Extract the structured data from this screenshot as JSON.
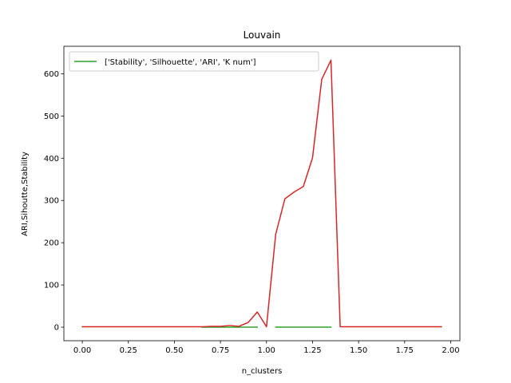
{
  "chart_data": {
    "type": "line",
    "title": "Louvain",
    "xlabel": "n_clusters",
    "ylabel": "ARI,Sihoutte,Stability",
    "xlim": [
      -0.1,
      2.05
    ],
    "ylim": [
      -32,
      665
    ],
    "xticks": [
      0.0,
      0.25,
      0.5,
      0.75,
      1.0,
      1.25,
      1.5,
      1.75,
      2.0
    ],
    "xtick_labels": [
      "0.00",
      "0.25",
      "0.50",
      "0.75",
      "1.00",
      "1.25",
      "1.50",
      "1.75",
      "2.00"
    ],
    "yticks": [
      0,
      100,
      200,
      300,
      400,
      500,
      600
    ],
    "ytick_labels": [
      "0",
      "100",
      "200",
      "300",
      "400",
      "500",
      "600"
    ],
    "grid": false,
    "legend": {
      "position": "top-left",
      "entries": [
        {
          "label": "['Stability', 'Silhouette', 'ARI', 'K num']",
          "color": "#2ca02c"
        }
      ]
    },
    "series": [
      {
        "color": "#2ca02c",
        "segments": [
          {
            "x": [
              0.65,
              0.7,
              0.75,
              0.8,
              0.85,
              0.9,
              0.95
            ],
            "y": [
              0,
              0,
              0,
              0,
              0,
              0,
              0
            ]
          },
          {
            "x": [
              1.05,
              1.1,
              1.15,
              1.2,
              1.25,
              1.3,
              1.35
            ],
            "y": [
              0,
              0,
              0,
              0,
              0,
              0,
              0
            ]
          }
        ]
      },
      {
        "color": "#d62728",
        "segments": [
          {
            "x": [
              0.0,
              0.05,
              0.1,
              0.15,
              0.2,
              0.25,
              0.3,
              0.35,
              0.4,
              0.45,
              0.5,
              0.55,
              0.6,
              0.65,
              0.7,
              0.75,
              0.8,
              0.85,
              0.9,
              0.95,
              1.0,
              1.05,
              1.1,
              1.15,
              1.2,
              1.25,
              1.3,
              1.35,
              1.4,
              1.45,
              1.5,
              1.55,
              1.6,
              1.65,
              1.7,
              1.75,
              1.8,
              1.85,
              1.9,
              1.95
            ],
            "y": [
              1,
              1,
              1,
              1,
              1,
              1,
              1,
              1,
              1,
              1,
              1,
              1,
              1,
              1,
              2,
              2,
              4,
              2,
              11,
              36,
              1,
              220,
              304,
              320,
              333,
              401,
              587,
              632,
              1,
              1,
              1,
              1,
              1,
              1,
              1,
              1,
              1,
              1,
              1,
              1
            ]
          }
        ]
      }
    ]
  }
}
